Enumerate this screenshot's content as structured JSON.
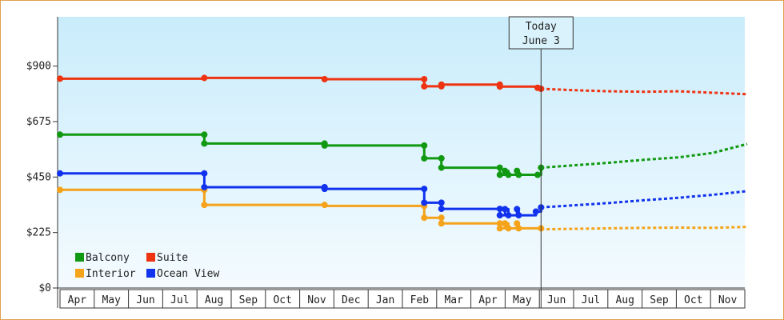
{
  "chart_data": {
    "type": "line",
    "title": "",
    "xlabel": "",
    "ylabel": "",
    "y_ticks": [
      "$0",
      "$225",
      "$450",
      "$675",
      "$900"
    ],
    "ylim": [
      0,
      1100
    ],
    "x_months": [
      "Apr",
      "May",
      "Jun",
      "Jul",
      "Aug",
      "Sep",
      "Oct",
      "Nov",
      "Dec",
      "Jan",
      "Feb",
      "Mar",
      "Apr",
      "May",
      "Jun",
      "Jul",
      "Aug",
      "Sep",
      "Oct",
      "Nov"
    ],
    "xlim": [
      0,
      20
    ],
    "today_index": 14.0,
    "today_label": [
      "Today",
      "June 3"
    ],
    "grid": false,
    "legend_position": "bottom-left",
    "series": [
      {
        "name": "Balcony",
        "color": "#119911",
        "points": [
          [
            0.0,
            622
          ],
          [
            4.2,
            622
          ],
          [
            4.2,
            586
          ],
          [
            7.7,
            586
          ],
          [
            7.7,
            578
          ],
          [
            10.6,
            578
          ],
          [
            10.6,
            526
          ],
          [
            11.1,
            526
          ],
          [
            11.1,
            488
          ],
          [
            12.8,
            488
          ],
          [
            12.8,
            459
          ],
          [
            12.95,
            459
          ],
          [
            12.95,
            475
          ],
          [
            13.05,
            475
          ],
          [
            13.05,
            459
          ],
          [
            13.3,
            459
          ],
          [
            13.3,
            475
          ],
          [
            13.35,
            475
          ],
          [
            13.35,
            459
          ],
          [
            14.0,
            459
          ],
          [
            14.0,
            488
          ]
        ],
        "markers": [
          [
            0.0,
            622
          ],
          [
            4.2,
            622
          ],
          [
            4.2,
            586
          ],
          [
            7.7,
            586
          ],
          [
            7.7,
            578
          ],
          [
            10.6,
            578
          ],
          [
            10.6,
            526
          ],
          [
            11.1,
            526
          ],
          [
            11.1,
            488
          ],
          [
            12.8,
            488
          ],
          [
            12.8,
            459
          ],
          [
            12.95,
            475
          ],
          [
            13.05,
            459
          ],
          [
            13.3,
            475
          ],
          [
            13.35,
            459
          ],
          [
            13.9,
            459
          ],
          [
            14.0,
            488
          ]
        ],
        "forecast": [
          [
            14.0,
            488
          ],
          [
            15.0,
            498
          ],
          [
            16.0,
            508
          ],
          [
            17.0,
            520
          ],
          [
            18.0,
            530
          ],
          [
            19.0,
            548
          ],
          [
            20.0,
            584
          ]
        ]
      },
      {
        "name": "Suite",
        "color": "#ee3311",
        "points": [
          [
            0.0,
            849
          ],
          [
            4.2,
            849
          ],
          [
            4.2,
            852
          ],
          [
            7.7,
            852
          ],
          [
            7.7,
            847
          ],
          [
            10.6,
            847
          ],
          [
            10.6,
            818
          ],
          [
            11.1,
            818
          ],
          [
            11.1,
            825
          ],
          [
            12.8,
            825
          ],
          [
            12.8,
            817
          ],
          [
            14.0,
            817
          ]
        ],
        "markers": [
          [
            0.0,
            849
          ],
          [
            4.2,
            852
          ],
          [
            7.7,
            847
          ],
          [
            10.6,
            847
          ],
          [
            10.6,
            818
          ],
          [
            11.1,
            818
          ],
          [
            11.1,
            825
          ],
          [
            12.8,
            825
          ],
          [
            12.8,
            817
          ],
          [
            13.9,
            812
          ],
          [
            14.0,
            808
          ]
        ],
        "forecast": [
          [
            14.0,
            808
          ],
          [
            15.0,
            802
          ],
          [
            16.0,
            798
          ],
          [
            17.0,
            796
          ],
          [
            18.0,
            798
          ],
          [
            19.0,
            792
          ],
          [
            20.0,
            786
          ]
        ]
      },
      {
        "name": "Interior",
        "color": "#f5a31a",
        "points": [
          [
            0.0,
            398
          ],
          [
            4.2,
            398
          ],
          [
            4.2,
            337
          ],
          [
            7.7,
            337
          ],
          [
            7.7,
            333
          ],
          [
            10.6,
            333
          ],
          [
            10.6,
            285
          ],
          [
            11.1,
            285
          ],
          [
            11.1,
            262
          ],
          [
            12.8,
            262
          ],
          [
            12.8,
            242
          ],
          [
            12.95,
            242
          ],
          [
            12.95,
            262
          ],
          [
            13.05,
            262
          ],
          [
            13.05,
            242
          ],
          [
            13.3,
            242
          ],
          [
            13.3,
            262
          ],
          [
            13.35,
            262
          ],
          [
            13.35,
            242
          ],
          [
            14.0,
            242
          ]
        ],
        "markers": [
          [
            0.0,
            398
          ],
          [
            4.2,
            398
          ],
          [
            4.2,
            337
          ],
          [
            7.7,
            337
          ],
          [
            10.6,
            333
          ],
          [
            10.6,
            285
          ],
          [
            11.1,
            285
          ],
          [
            11.1,
            262
          ],
          [
            12.8,
            262
          ],
          [
            12.8,
            242
          ],
          [
            12.95,
            262
          ],
          [
            13.05,
            242
          ],
          [
            13.3,
            262
          ],
          [
            13.35,
            242
          ],
          [
            14.0,
            242
          ]
        ],
        "forecast": [
          [
            14.0,
            238
          ],
          [
            15.0,
            240
          ],
          [
            16.0,
            242
          ],
          [
            17.0,
            244
          ],
          [
            18.0,
            245
          ],
          [
            19.0,
            244
          ],
          [
            20.0,
            248
          ]
        ]
      },
      {
        "name": "Ocean View",
        "color": "#1133ee",
        "points": [
          [
            0.0,
            465
          ],
          [
            4.2,
            465
          ],
          [
            4.2,
            409
          ],
          [
            7.7,
            409
          ],
          [
            7.7,
            402
          ],
          [
            10.6,
            402
          ],
          [
            10.6,
            346
          ],
          [
            11.1,
            346
          ],
          [
            11.1,
            321
          ],
          [
            12.8,
            321
          ],
          [
            12.8,
            295
          ],
          [
            12.95,
            295
          ],
          [
            12.95,
            320
          ],
          [
            13.05,
            320
          ],
          [
            13.05,
            295
          ],
          [
            13.3,
            295
          ],
          [
            13.3,
            320
          ],
          [
            13.35,
            320
          ],
          [
            13.35,
            295
          ],
          [
            13.85,
            295
          ],
          [
            13.85,
            310
          ],
          [
            14.0,
            310
          ],
          [
            14.0,
            327
          ]
        ],
        "markers": [
          [
            0.0,
            465
          ],
          [
            4.2,
            465
          ],
          [
            4.2,
            409
          ],
          [
            7.7,
            409
          ],
          [
            7.7,
            402
          ],
          [
            10.6,
            402
          ],
          [
            10.6,
            346
          ],
          [
            11.1,
            346
          ],
          [
            11.1,
            321
          ],
          [
            12.8,
            321
          ],
          [
            12.8,
            295
          ],
          [
            12.95,
            320
          ],
          [
            13.05,
            295
          ],
          [
            13.3,
            320
          ],
          [
            13.35,
            295
          ],
          [
            13.85,
            310
          ],
          [
            14.0,
            327
          ]
        ],
        "forecast": [
          [
            14.0,
            327
          ],
          [
            15.0,
            336
          ],
          [
            16.0,
            345
          ],
          [
            17.0,
            356
          ],
          [
            18.0,
            366
          ],
          [
            19.0,
            378
          ],
          [
            20.0,
            393
          ]
        ]
      }
    ],
    "legend": [
      {
        "name": "Balcony",
        "color": "#119911"
      },
      {
        "name": "Suite",
        "color": "#ee3311"
      },
      {
        "name": "Interior",
        "color": "#f5a31a"
      },
      {
        "name": "Ocean View",
        "color": "#1133ee"
      }
    ]
  }
}
